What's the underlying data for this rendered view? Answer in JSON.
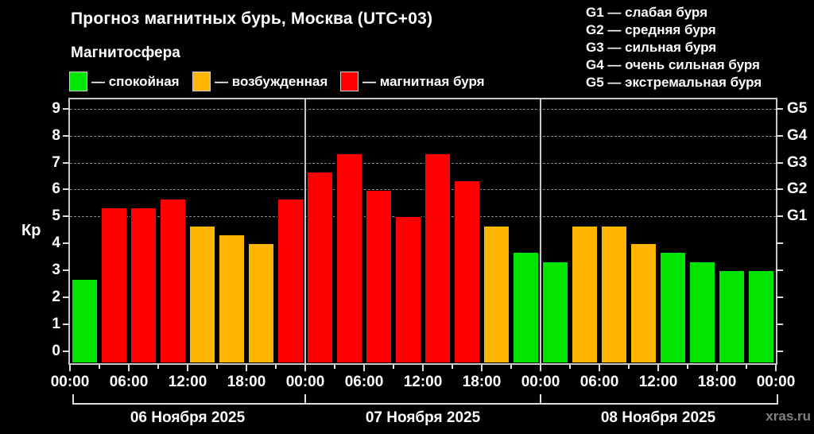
{
  "title": "Прогноз магнитных бурь, Москва (UTC+03)",
  "subtitle": "Магнитосфера",
  "watermark": "xras.ru",
  "legend": [
    {
      "name": "quiet",
      "label": "— спокойная",
      "color": "#00e400"
    },
    {
      "name": "unsettled",
      "label": "— возбужденная",
      "color": "#ffb400"
    },
    {
      "name": "storm",
      "label": "— магнитная буря",
      "color": "#ff0000"
    }
  ],
  "g_legend": [
    "G1 — слабая буря",
    "G2 — средняя буря",
    "G3 — сильная буря",
    "G4 — очень сильная буря",
    "G5 — экстремальная буря"
  ],
  "chart_data": {
    "type": "bar",
    "title": "Прогноз магнитных бурь, Москва (UTC+03)",
    "ylabel": "Кр",
    "ylim": [
      -0.45,
      9.35
    ],
    "y_ticks": [
      0,
      1,
      2,
      3,
      4,
      5,
      6,
      7,
      8,
      9
    ],
    "gridlines_at": [
      5,
      6,
      7,
      8,
      9
    ],
    "grid": "dashed, only at G-storm levels (Kp 5..9)",
    "legend_position": "top",
    "right_axis": [
      {
        "kp": 5,
        "label": "G1"
      },
      {
        "kp": 6,
        "label": "G2"
      },
      {
        "kp": 7,
        "label": "G3"
      },
      {
        "kp": 8,
        "label": "G4"
      },
      {
        "kp": 9,
        "label": "G5"
      }
    ],
    "hours_per_bar": 3,
    "x_tick_labels": [
      "00:00",
      "06:00",
      "12:00",
      "18:00",
      "00:00",
      "06:00",
      "12:00",
      "18:00",
      "00:00",
      "06:00",
      "12:00",
      "18:00",
      "00:00"
    ],
    "colors": {
      "quiet": "#00e400",
      "unsettled": "#ffb400",
      "storm": "#ff0000"
    },
    "days": [
      {
        "date": "06 Ноября 2025",
        "values": [
          2.67,
          5.33,
          5.33,
          5.67,
          4.67,
          4.33,
          4.0,
          5.67
        ],
        "states": [
          "quiet",
          "storm",
          "storm",
          "storm",
          "unsettled",
          "unsettled",
          "unsettled",
          "storm"
        ]
      },
      {
        "date": "07 Ноября 2025",
        "values": [
          6.67,
          7.33,
          6.0,
          5.0,
          7.33,
          6.33,
          4.67,
          3.67
        ],
        "states": [
          "storm",
          "storm",
          "storm",
          "storm",
          "storm",
          "storm",
          "unsettled",
          "quiet"
        ]
      },
      {
        "date": "08 Ноября 2025",
        "values": [
          3.33,
          4.67,
          4.67,
          4.0,
          3.67,
          3.33,
          3.0,
          3.0
        ],
        "states": [
          "quiet",
          "unsettled",
          "unsettled",
          "unsettled",
          "quiet",
          "quiet",
          "quiet",
          "quiet"
        ]
      }
    ]
  }
}
